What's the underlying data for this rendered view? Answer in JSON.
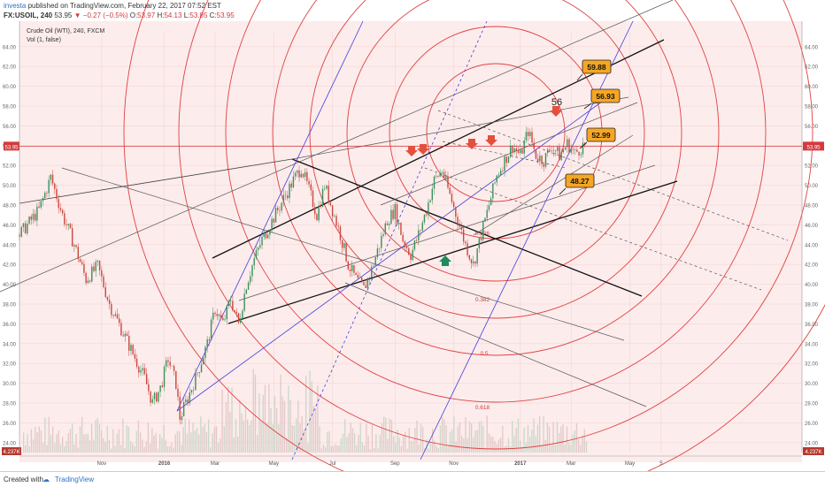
{
  "header": {
    "author": "investa",
    "published": "published on TradingView.com, February 22, 2017 07:52 EST",
    "symbol": "FX:USOIL, 240",
    "last": "53.95",
    "arrow": "▼",
    "change": "−0.27 (−0.5%)",
    "ohlc_o_label": "O:",
    "ohlc_o": "53.97",
    "ohlc_h_label": "H:",
    "ohlc_h": "54.13",
    "ohlc_l_label": "L:",
    "ohlc_l": "53.85",
    "ohlc_c_label": "C:",
    "ohlc_c": "53.95"
  },
  "footer": {
    "created": "Created with",
    "brand": "TradingView"
  },
  "chart_data": {
    "type": "candlestick",
    "title": "Crude Oil (WTI), 240, FXCM",
    "subtitle": "Vol (1, false)",
    "y_ticks": [
      24,
      26,
      28,
      30,
      32,
      34,
      36,
      38,
      40,
      42,
      44,
      46,
      48,
      50,
      52,
      54,
      56,
      58,
      60,
      62,
      64
    ],
    "y_tick_labels": [
      "24.00",
      "26.00",
      "28.00",
      "30.00",
      "32.00",
      "34.00",
      "36.00",
      "38.00",
      "40.00",
      "42.00",
      "44.00",
      "46.00",
      "48.00",
      "50.00",
      "52.00",
      "54.00",
      "56.00",
      "58.00",
      "60.00",
      "62.00",
      "64.00"
    ],
    "x_tick_labels": [
      "Nov",
      "2016",
      "Mar",
      "May",
      "Jul",
      "Sep",
      "Nov",
      "2017",
      "Mar",
      "May",
      "5"
    ],
    "current_price": 53.95,
    "current_price_label": "53.95",
    "volume_label": "4.237K",
    "price_path": [
      [
        0,
        45.0
      ],
      [
        0.025,
        47.5
      ],
      [
        0.04,
        50.8
      ],
      [
        0.055,
        47.0
      ],
      [
        0.07,
        44.0
      ],
      [
        0.085,
        40.5
      ],
      [
        0.1,
        41.8
      ],
      [
        0.115,
        38.0
      ],
      [
        0.13,
        35.5
      ],
      [
        0.145,
        33.0
      ],
      [
        0.16,
        30.5
      ],
      [
        0.17,
        28.0
      ],
      [
        0.18,
        29.5
      ],
      [
        0.19,
        32.5
      ],
      [
        0.2,
        30.0
      ],
      [
        0.205,
        26.5
      ],
      [
        0.215,
        28.5
      ],
      [
        0.225,
        30.5
      ],
      [
        0.24,
        34.0
      ],
      [
        0.25,
        37.5
      ],
      [
        0.26,
        36.0
      ],
      [
        0.27,
        38.5
      ],
      [
        0.28,
        36.0
      ],
      [
        0.29,
        40.0
      ],
      [
        0.3,
        42.5
      ],
      [
        0.31,
        44.5
      ],
      [
        0.32,
        46.0
      ],
      [
        0.33,
        47.5
      ],
      [
        0.34,
        49.0
      ],
      [
        0.35,
        50.5
      ],
      [
        0.36,
        51.8
      ],
      [
        0.37,
        49.5
      ],
      [
        0.38,
        47.0
      ],
      [
        0.39,
        50.0
      ],
      [
        0.4,
        47.5
      ],
      [
        0.41,
        45.0
      ],
      [
        0.42,
        42.0
      ],
      [
        0.43,
        40.5
      ],
      [
        0.44,
        39.5
      ],
      [
        0.45,
        41.5
      ],
      [
        0.46,
        44.0
      ],
      [
        0.47,
        46.5
      ],
      [
        0.48,
        47.5
      ],
      [
        0.49,
        44.5
      ],
      [
        0.5,
        43.0
      ],
      [
        0.51,
        45.0
      ],
      [
        0.52,
        47.5
      ],
      [
        0.53,
        50.5
      ],
      [
        0.54,
        51.5
      ],
      [
        0.55,
        49.0
      ],
      [
        0.56,
        46.5
      ],
      [
        0.57,
        44.0
      ],
      [
        0.58,
        42.0
      ],
      [
        0.59,
        45.0
      ],
      [
        0.6,
        48.0
      ],
      [
        0.61,
        51.0
      ],
      [
        0.62,
        52.5
      ],
      [
        0.63,
        54.0
      ],
      [
        0.64,
        53.0
      ],
      [
        0.65,
        55.5
      ],
      [
        0.66,
        53.0
      ],
      [
        0.67,
        52.5
      ],
      [
        0.68,
        54.0
      ],
      [
        0.69,
        53.0
      ],
      [
        0.7,
        54.2
      ],
      [
        0.71,
        53.2
      ],
      [
        0.72,
        54.0
      ],
      [
        0.725,
        53.95
      ]
    ],
    "annotations": [
      {
        "text": "59.88",
        "kind": "price-label"
      },
      {
        "text": "56.93",
        "kind": "price-label"
      },
      {
        "text": "52.99",
        "kind": "price-label"
      },
      {
        "text": "48.27",
        "kind": "price-label"
      },
      {
        "text": "56",
        "kind": "text"
      },
      {
        "text": "0.236",
        "kind": "fib"
      },
      {
        "text": "0.382",
        "kind": "fib"
      },
      {
        "text": "0.5",
        "kind": "fib"
      },
      {
        "text": "0.618",
        "kind": "fib"
      }
    ],
    "colors": {
      "price_line": "#d5393d",
      "fib_circle": "#e04040",
      "label_fill": "#f5a623",
      "up_arrow": "#1f8a5a",
      "down_arrow": "#e4503d",
      "fan_blue": "#3f3fdc"
    }
  }
}
